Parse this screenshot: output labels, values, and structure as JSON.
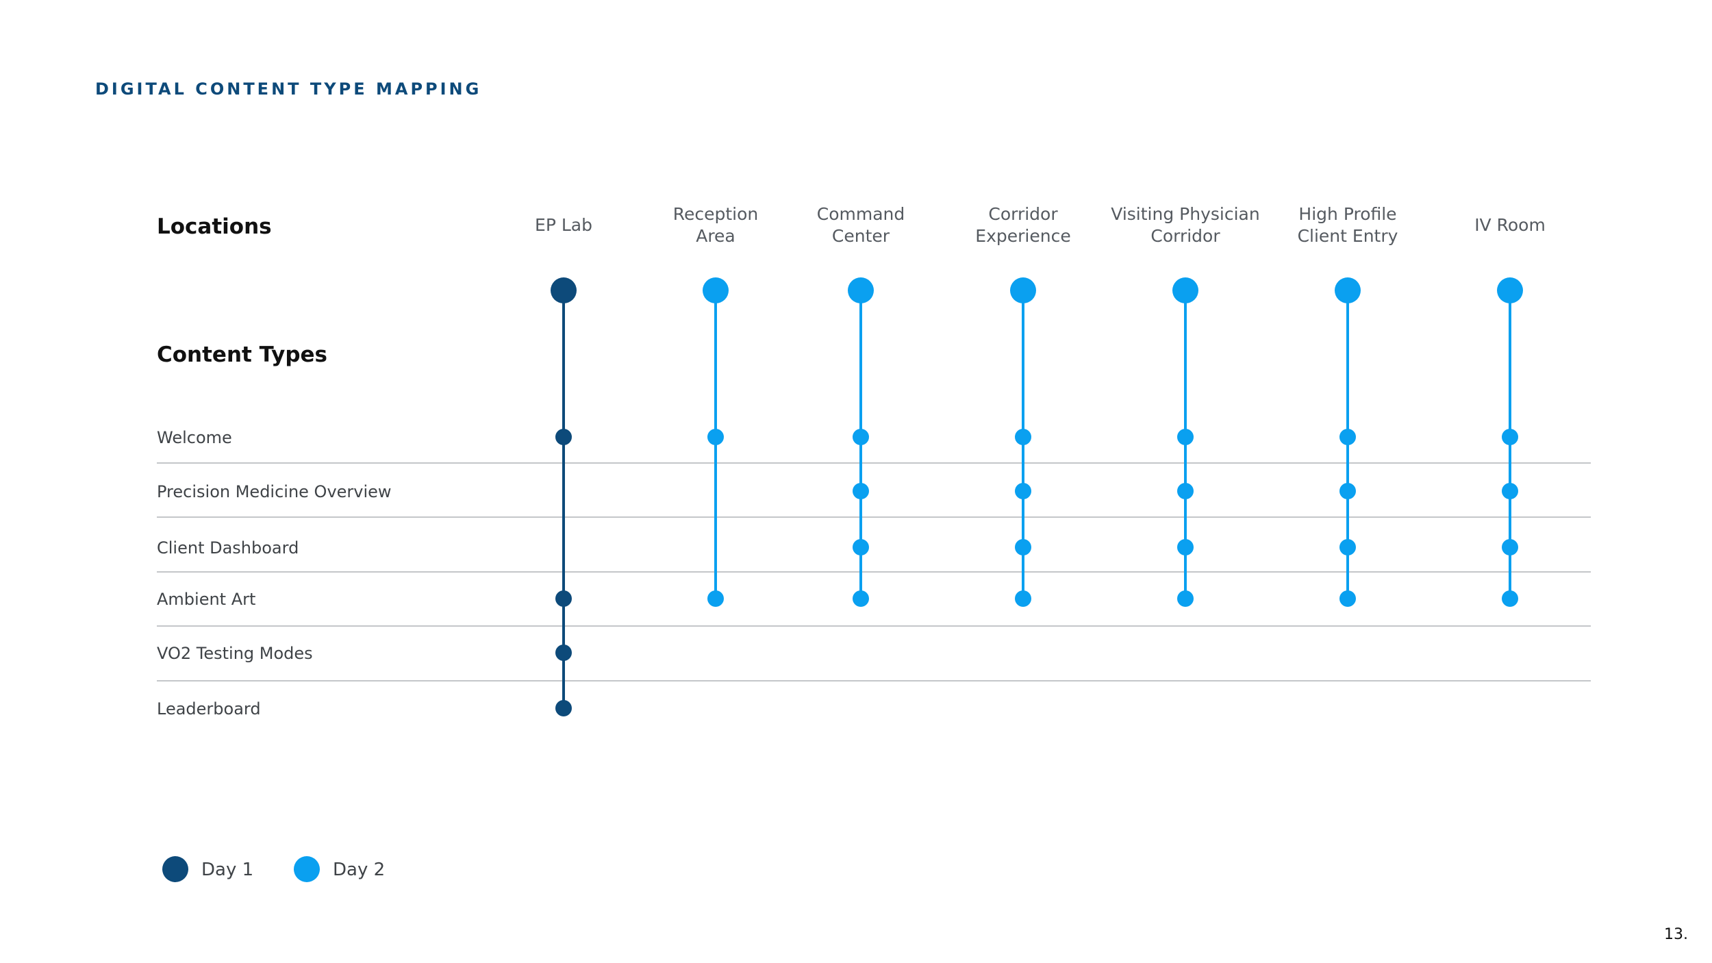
{
  "page": {
    "title": "DIGITAL CONTENT TYPE MAPPING",
    "page_number": "13."
  },
  "headings": {
    "locations": "Locations",
    "content_types": "Content Types"
  },
  "colors": {
    "day1": "#0d4a7a",
    "day2": "#0aa0f0",
    "divider": "#c4c6c9"
  },
  "locations": [
    {
      "lines": [
        "EP Lab"
      ],
      "day": 1
    },
    {
      "lines": [
        "Reception",
        "Area"
      ],
      "day": 2
    },
    {
      "lines": [
        "Command",
        "Center"
      ],
      "day": 2
    },
    {
      "lines": [
        "Corridor",
        "Experience"
      ],
      "day": 2
    },
    {
      "lines": [
        "Visiting Physician",
        "Corridor"
      ],
      "day": 2
    },
    {
      "lines": [
        "High Profile",
        "Client Entry"
      ],
      "day": 2
    },
    {
      "lines": [
        "IV Room"
      ],
      "day": 2
    }
  ],
  "content_types": [
    "Welcome",
    "Precision Medicine Overview",
    "Client Dashboard",
    "Ambient Art",
    "VO2 Testing Modes",
    "Leaderboard"
  ],
  "mapping": [
    [
      true,
      false,
      false,
      true,
      true,
      true
    ],
    [
      true,
      false,
      false,
      true,
      false,
      false
    ],
    [
      true,
      true,
      true,
      true,
      false,
      false
    ],
    [
      true,
      true,
      true,
      true,
      false,
      false
    ],
    [
      true,
      true,
      true,
      true,
      false,
      false
    ],
    [
      true,
      true,
      true,
      true,
      false,
      false
    ],
    [
      true,
      true,
      true,
      true,
      false,
      false
    ]
  ],
  "legend": [
    {
      "label": "Day 1",
      "day": 1
    },
    {
      "label": "Day 2",
      "day": 2
    }
  ]
}
